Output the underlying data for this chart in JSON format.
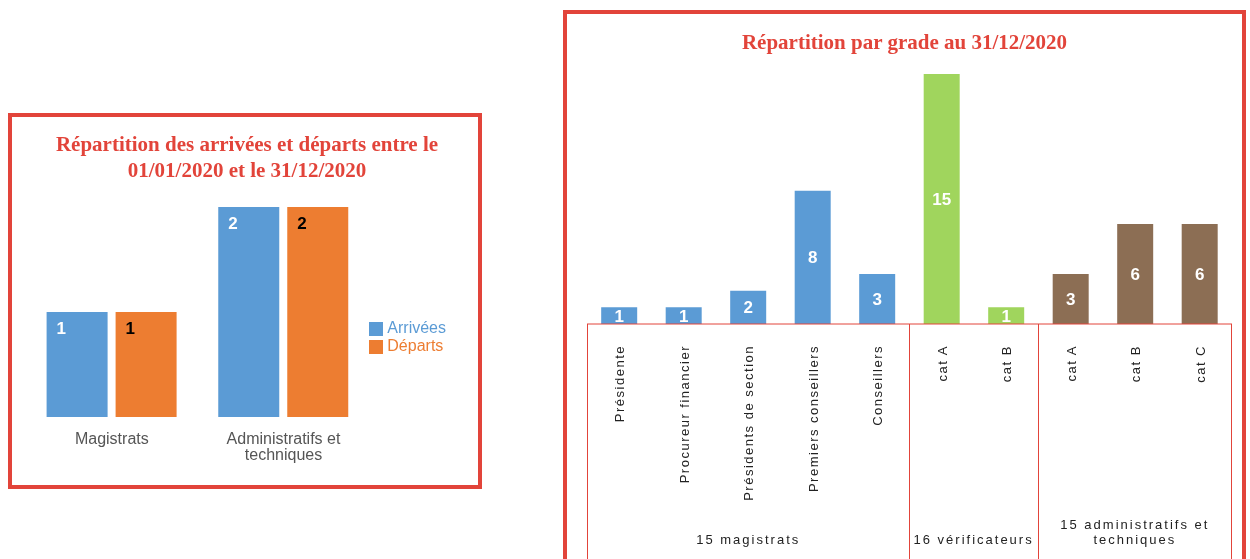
{
  "chart_data": [
    {
      "type": "bar",
      "title": "Répartition des arrivées et départs entre le 01/01/2020 et le 31/12/2020",
      "categories": [
        "Magistrats",
        "Administratifs et techniques"
      ],
      "series": [
        {
          "name": "Arrivées",
          "color": "#5b9bd5",
          "values": [
            1,
            2
          ]
        },
        {
          "name": "Départs",
          "color": "#ed7d31",
          "values": [
            1,
            2
          ]
        }
      ],
      "data_labels": true,
      "legend": "right",
      "grid": false,
      "tick_labels": "x"
    },
    {
      "type": "bar",
      "title": "Répartition par grade au 31/12/2020",
      "categories": [
        "Présidente",
        "Procureur financier",
        "Présidents de section",
        "Premiers conseillers",
        "Conseillers",
        "cat A",
        "cat B",
        "cat A",
        "cat B",
        "cat C"
      ],
      "values": [
        1,
        1,
        2,
        8,
        3,
        15,
        1,
        3,
        6,
        6
      ],
      "colors": [
        "#5b9bd5",
        "#5b9bd5",
        "#5b9bd5",
        "#5b9bd5",
        "#5b9bd5",
        "#a0d55d",
        "#a0d55d",
        "#8c6e54",
        "#8c6e54",
        "#8c6e54"
      ],
      "data_labels": true,
      "grid": false,
      "tick_labels": "x",
      "annotations": [
        "15 magistrats",
        "16 vérificateurs",
        "15 administratifs et techniques"
      ]
    }
  ]
}
